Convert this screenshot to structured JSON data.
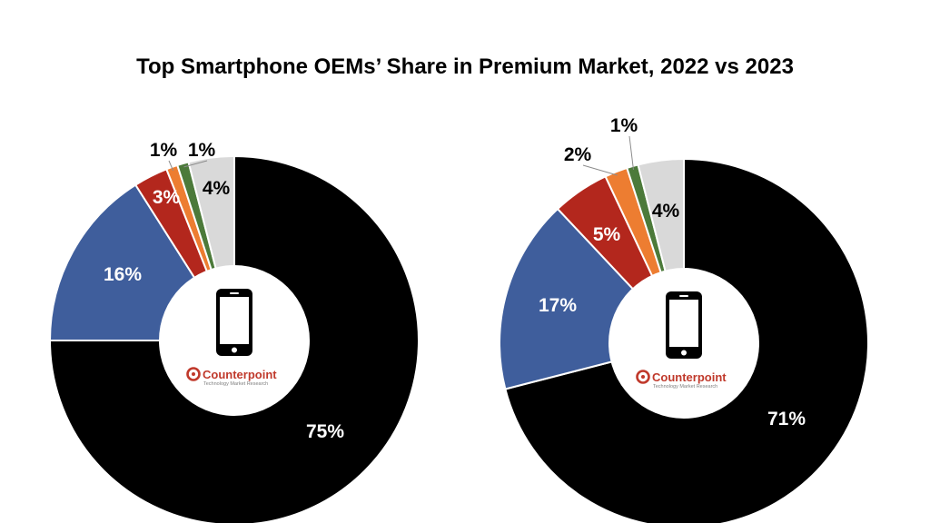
{
  "chart_data": {
    "type": "pie",
    "title": "Top Smartphone OEMs’ Share in Premium Market, 2022 vs 2023",
    "charts": [
      {
        "slices": [
          {
            "value": 75,
            "label": "75%",
            "color": "#000000"
          },
          {
            "value": 16,
            "label": "16%",
            "color": "#3f5e9c"
          },
          {
            "value": 3,
            "label": "3%",
            "color": "#b3271d"
          },
          {
            "value": 1,
            "label": "1%",
            "color": "#ed7d31"
          },
          {
            "value": 1,
            "label": "1%",
            "color": "#4c7a3a"
          },
          {
            "value": 4,
            "label": "4%",
            "color": "#d9d9d9"
          }
        ]
      },
      {
        "slices": [
          {
            "value": 71,
            "label": "71%",
            "color": "#000000"
          },
          {
            "value": 17,
            "label": "17%",
            "color": "#3f5e9c"
          },
          {
            "value": 5,
            "label": "5%",
            "color": "#b3271d"
          },
          {
            "value": 2,
            "label": "2%",
            "color": "#ed7d31"
          },
          {
            "value": 1,
            "label": "1%",
            "color": "#4c7a3a"
          },
          {
            "value": 4,
            "label": "4%",
            "color": "#d9d9d9"
          }
        ]
      }
    ]
  },
  "logo": {
    "name": "Counterpoint",
    "tagline": "Technology Market Research",
    "color": "#c0392b"
  },
  "center_icon": "smartphone-icon"
}
